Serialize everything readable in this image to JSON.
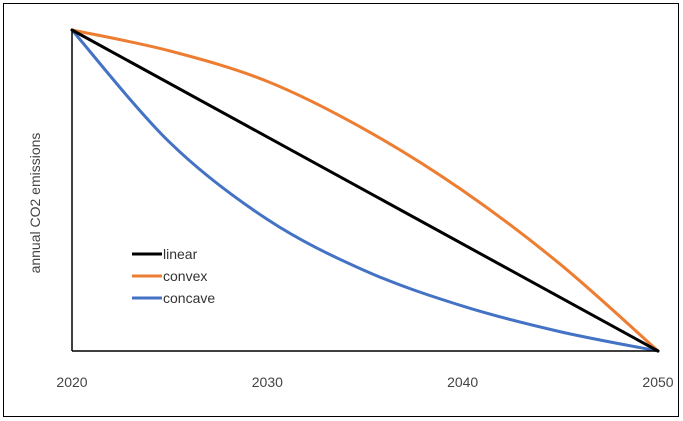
{
  "chart_data": {
    "type": "line",
    "title": "",
    "xlabel": "",
    "ylabel": "annual CO2 emissions",
    "xlim": [
      2020,
      2050
    ],
    "ylim": [
      0,
      1
    ],
    "x_ticks": [
      "2020",
      "2030",
      "2040",
      "2050"
    ],
    "y_ticks": [],
    "grid": false,
    "legend_position": "bottom-left",
    "series": [
      {
        "name": "linear",
        "color": "#000000",
        "x": [
          2020,
          2050
        ],
        "y": [
          1,
          0
        ]
      },
      {
        "name": "convex",
        "color": "#ED7D31",
        "x": [
          2020,
          2025,
          2030,
          2035,
          2040,
          2045,
          2050
        ],
        "y": [
          1,
          0.935,
          0.84,
          0.69,
          0.5,
          0.27,
          0
        ]
      },
      {
        "name": "concave",
        "color": "#4472C4",
        "x": [
          2020,
          2025,
          2030,
          2035,
          2040,
          2045,
          2050
        ],
        "y": [
          1,
          0.65,
          0.41,
          0.25,
          0.14,
          0.06,
          0
        ]
      }
    ]
  }
}
